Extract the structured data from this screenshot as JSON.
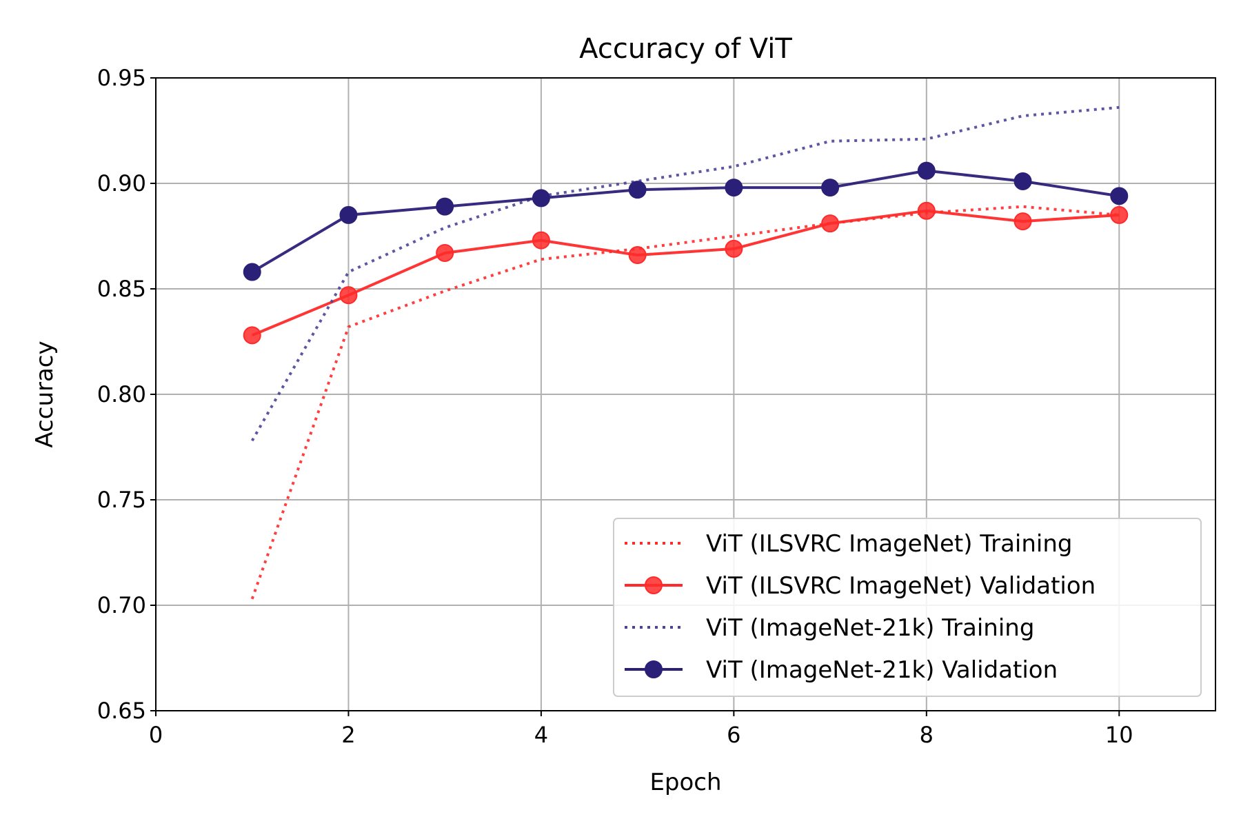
{
  "chart_data": {
    "type": "line",
    "title": "Accuracy of ViT",
    "xlabel": "Epoch",
    "ylabel": "Accuracy",
    "xlim": [
      0,
      11
    ],
    "ylim": [
      0.65,
      0.95
    ],
    "x_ticks": [
      "0",
      "2",
      "4",
      "6",
      "8",
      "10"
    ],
    "x_tick_values": [
      0,
      2,
      4,
      6,
      8,
      10
    ],
    "y_ticks": [
      "0.65",
      "0.70",
      "0.75",
      "0.80",
      "0.85",
      "0.90",
      "0.95"
    ],
    "y_tick_values": [
      0.65,
      0.7,
      0.75,
      0.8,
      0.85,
      0.9,
      0.95
    ],
    "grid": true,
    "legend_position": "lower-right",
    "x": [
      1,
      2,
      3,
      4,
      5,
      6,
      7,
      8,
      9,
      10
    ],
    "series": [
      {
        "name": "ViT (ILSVRC ImageNet) Training",
        "style": "dotted",
        "markers": false,
        "color": "#ff2a2a",
        "values": [
          0.703,
          0.832,
          0.849,
          0.864,
          0.869,
          0.875,
          0.881,
          0.886,
          0.889,
          0.885
        ]
      },
      {
        "name": "ViT (ILSVRC ImageNet) Validation",
        "style": "solid",
        "markers": true,
        "color": "#ff2a2a",
        "values": [
          0.828,
          0.847,
          0.867,
          0.873,
          0.866,
          0.869,
          0.881,
          0.887,
          0.882,
          0.885
        ]
      },
      {
        "name": "ViT (ImageNet-21k) Training",
        "style": "dotted",
        "markers": false,
        "color": "#4a4499",
        "values": [
          0.778,
          0.858,
          0.879,
          0.894,
          0.901,
          0.908,
          0.92,
          0.921,
          0.932,
          0.936
        ]
      },
      {
        "name": "ViT (ImageNet-21k) Validation",
        "style": "solid",
        "markers": true,
        "color": "#2b2078",
        "values": [
          0.858,
          0.885,
          0.889,
          0.893,
          0.897,
          0.898,
          0.898,
          0.906,
          0.901,
          0.894
        ]
      }
    ]
  }
}
